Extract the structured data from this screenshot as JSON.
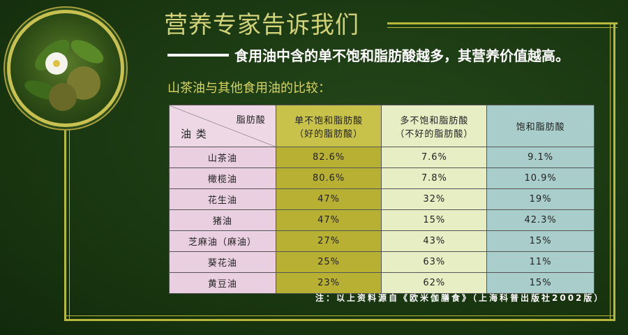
{
  "title": "营养专家告诉我们",
  "subtitle": "食用油中含的单不饱和脂肪酸越多，其营养价值越高。",
  "caption": "山茶油与其他食用油的比较：",
  "table": {
    "corner_top": "脂肪酸",
    "corner_bottom": "油 类",
    "headers": [
      [
        "单不饱和脂肪酸",
        "（好的脂肪酸）"
      ],
      [
        "多不饱和脂肪酸",
        "（不好的脂肪酸）"
      ],
      [
        "饱和脂肪酸",
        ""
      ]
    ],
    "rows": [
      [
        "山茶油",
        "82.6%",
        "7.6%",
        "9.1%"
      ],
      [
        "橄榄油",
        "80.6%",
        "7.8%",
        "10.9%"
      ],
      [
        "花生油",
        "47%",
        "32%",
        "19%"
      ],
      [
        "猪油",
        "47%",
        "15%",
        "42.3%"
      ],
      [
        "芝麻油（麻油）",
        "27%",
        "43%",
        "15%"
      ],
      [
        "葵花油",
        "25%",
        "63%",
        "11%"
      ],
      [
        "黄豆油",
        "23%",
        "62%",
        "15%"
      ]
    ]
  },
  "note": "注：以上资料源自《欧米伽膳食》（上海科普出版社2002版）",
  "colors": {
    "background": "#17340f",
    "frame": "#b8b83a",
    "title": "#d2d27a",
    "col_oil": "#e9cfe0",
    "col_mono": "#b8b032",
    "col_poly": "#e8eec4",
    "col_sat": "#a9cdcb"
  }
}
